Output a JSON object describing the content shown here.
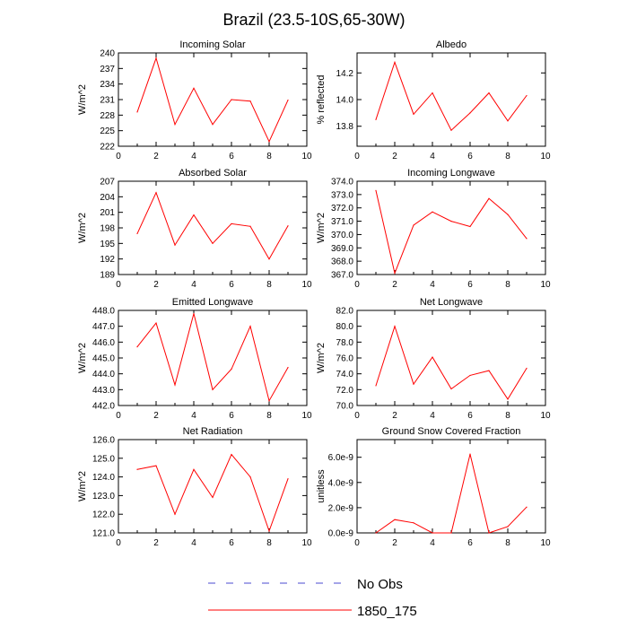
{
  "title": "Brazil (23.5-10S,65-30W)",
  "colors": {
    "model": "#ff0000",
    "obs": "#4b4bd2",
    "axis": "#000000"
  },
  "legend": [
    {
      "label": "No Obs",
      "style": "dashed",
      "color": "#4b4bd2"
    },
    {
      "label": "1850_175",
      "style": "solid",
      "color": "#ff0000"
    }
  ],
  "chart_data": [
    {
      "type": "line",
      "title": "Incoming Solar",
      "ylabel": "W/m^2",
      "xlim": [
        0,
        10
      ],
      "xticks": [
        "0",
        "2",
        "4",
        "6",
        "8",
        "10"
      ],
      "ylim": [
        222,
        240
      ],
      "yticks": [
        "222",
        "225",
        "228",
        "231",
        "234",
        "237",
        "240"
      ],
      "series": [
        {
          "name": "1850_175",
          "x": [
            1,
            2,
            3,
            4,
            5,
            6,
            7,
            8,
            9
          ],
          "values": [
            228.6,
            239.0,
            226.2,
            233.2,
            226.2,
            231.0,
            230.7,
            222.9,
            230.9
          ]
        }
      ]
    },
    {
      "type": "line",
      "title": "Albedo",
      "ylabel": "% reflected",
      "xlim": [
        0,
        10
      ],
      "xticks": [
        "0",
        "2",
        "4",
        "6",
        "8",
        "10"
      ],
      "ylim": [
        13.65,
        14.35
      ],
      "yticks": [
        "13.8",
        "14.0",
        "14.2"
      ],
      "series": [
        {
          "name": "1850_175",
          "x": [
            1,
            2,
            3,
            4,
            5,
            6,
            7,
            8,
            9
          ],
          "values": [
            13.85,
            14.28,
            13.89,
            14.05,
            13.77,
            13.9,
            14.05,
            13.84,
            14.03
          ]
        }
      ]
    },
    {
      "type": "line",
      "title": "Absorbed Solar",
      "ylabel": "W/m^2",
      "xlim": [
        0,
        10
      ],
      "xticks": [
        "0",
        "2",
        "4",
        "6",
        "8",
        "10"
      ],
      "ylim": [
        189,
        207
      ],
      "yticks": [
        "189",
        "192",
        "195",
        "198",
        "201",
        "204",
        "207"
      ],
      "series": [
        {
          "name": "1850_175",
          "x": [
            1,
            2,
            3,
            4,
            5,
            6,
            7,
            8,
            9
          ],
          "values": [
            196.9,
            204.8,
            194.7,
            200.5,
            195.0,
            198.8,
            198.3,
            192.0,
            198.4
          ]
        }
      ]
    },
    {
      "type": "line",
      "title": "Incoming Longwave",
      "ylabel": "W/m^2",
      "xlim": [
        0,
        10
      ],
      "xticks": [
        "0",
        "2",
        "4",
        "6",
        "8",
        "10"
      ],
      "ylim": [
        367.0,
        374.0
      ],
      "yticks": [
        "367.0",
        "368.0",
        "369.0",
        "370.0",
        "371.0",
        "372.0",
        "373.0",
        "374.0"
      ],
      "series": [
        {
          "name": "1850_175",
          "x": [
            1,
            2,
            3,
            4,
            5,
            6,
            7,
            8,
            9
          ],
          "values": [
            373.3,
            367.1,
            370.7,
            371.7,
            371.0,
            370.6,
            372.7,
            371.5,
            369.7
          ]
        }
      ]
    },
    {
      "type": "line",
      "title": "Emitted Longwave",
      "ylabel": "W/m^2",
      "xlim": [
        0,
        10
      ],
      "xticks": [
        "0",
        "2",
        "4",
        "6",
        "8",
        "10"
      ],
      "ylim": [
        442.0,
        448.0
      ],
      "yticks": [
        "442.0",
        "443.0",
        "444.0",
        "445.0",
        "446.0",
        "447.0",
        "448.0"
      ],
      "series": [
        {
          "name": "1850_175",
          "x": [
            1,
            2,
            3,
            4,
            5,
            6,
            7,
            8,
            9
          ],
          "values": [
            445.7,
            447.2,
            443.3,
            447.8,
            443.0,
            444.3,
            447.0,
            442.3,
            444.4
          ]
        }
      ]
    },
    {
      "type": "line",
      "title": "Net Longwave",
      "ylabel": "W/m^2",
      "xlim": [
        0,
        10
      ],
      "xticks": [
        "0",
        "2",
        "4",
        "6",
        "8",
        "10"
      ],
      "ylim": [
        70.0,
        82.0
      ],
      "yticks": [
        "70.0",
        "72.0",
        "74.0",
        "76.0",
        "78.0",
        "80.0",
        "82.0"
      ],
      "series": [
        {
          "name": "1850_175",
          "x": [
            1,
            2,
            3,
            4,
            5,
            6,
            7,
            8,
            9
          ],
          "values": [
            72.5,
            80.0,
            72.7,
            76.1,
            72.1,
            73.8,
            74.4,
            70.8,
            74.7
          ]
        }
      ]
    },
    {
      "type": "line",
      "title": "Net Radiation",
      "ylabel": "W/m^2",
      "xlim": [
        0,
        10
      ],
      "xticks": [
        "0",
        "2",
        "4",
        "6",
        "8",
        "10"
      ],
      "ylim": [
        121.0,
        126.0
      ],
      "yticks": [
        "121.0",
        "122.0",
        "123.0",
        "124.0",
        "125.0",
        "126.0"
      ],
      "series": [
        {
          "name": "1850_175",
          "x": [
            1,
            2,
            3,
            4,
            5,
            6,
            7,
            8,
            9
          ],
          "values": [
            124.4,
            124.6,
            122.0,
            124.4,
            122.9,
            125.2,
            124.0,
            121.1,
            123.9
          ]
        }
      ]
    },
    {
      "type": "line",
      "title": "Ground Snow Covered Fraction",
      "ylabel": "unitless",
      "xlim": [
        0,
        10
      ],
      "xticks": [
        "0",
        "2",
        "4",
        "6",
        "8",
        "10"
      ],
      "ylim": [
        0,
        7.4e-09
      ],
      "yticks": [
        "0.0e-9",
        "2.0e-9",
        "4.0e-9",
        "6.0e-9"
      ],
      "series": [
        {
          "name": "1850_175",
          "x": [
            1,
            2,
            3,
            4,
            5,
            6,
            7,
            8,
            9
          ],
          "values": [
            0,
            1.05e-09,
            8e-10,
            0,
            0,
            6.25e-09,
            0,
            5e-10,
            2.05e-09
          ]
        }
      ]
    }
  ]
}
